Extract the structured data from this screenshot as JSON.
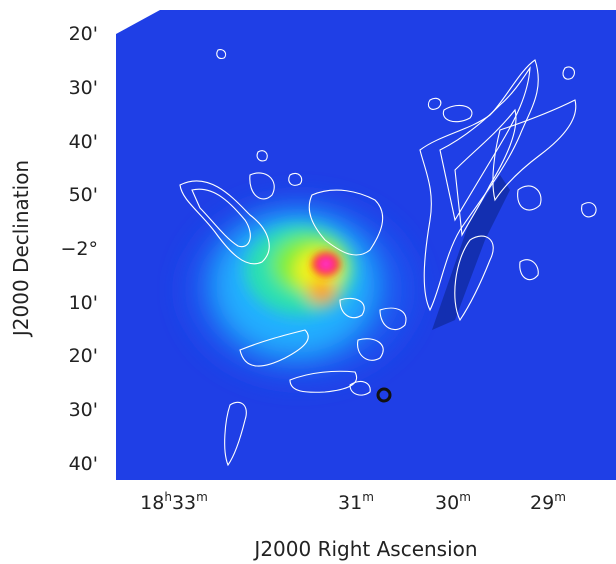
{
  "figure": {
    "colormap_colors": [
      "#1f3fe6",
      "#1a55f0",
      "#20b0ff",
      "#2be0b0",
      "#7bee3a",
      "#f2f21e",
      "#ff9a1a",
      "#ff2a2a",
      "#ff30c8"
    ],
    "contour_color": "#ffffff",
    "marker_color": "#111111"
  },
  "axes": {
    "xlabel": "J2000 Right Ascension",
    "ylabel": "J2000 Declination",
    "y_ticks": [
      {
        "label": "20'"
      },
      {
        "label": "30'"
      },
      {
        "label": "40'"
      },
      {
        "label": "50'"
      },
      {
        "label": "−2°"
      },
      {
        "label": "10'"
      },
      {
        "label": "20'"
      },
      {
        "label": "30'"
      },
      {
        "label": "40'"
      }
    ],
    "x_ticks": [
      {
        "h": "18",
        "hsup": "h",
        "m": "33",
        "msup": "m"
      },
      {
        "h": "",
        "hsup": "",
        "m": "31",
        "msup": "m"
      },
      {
        "h": "",
        "hsup": "",
        "m": "30",
        "msup": "m"
      },
      {
        "h": "",
        "hsup": "",
        "m": "29",
        "msup": "m"
      }
    ]
  }
}
